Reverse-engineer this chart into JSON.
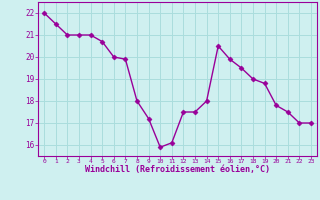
{
  "x": [
    0,
    1,
    2,
    3,
    4,
    5,
    6,
    7,
    8,
    9,
    10,
    11,
    12,
    13,
    14,
    15,
    16,
    17,
    18,
    19,
    20,
    21,
    22,
    23
  ],
  "y": [
    22.0,
    21.5,
    21.0,
    21.0,
    21.0,
    20.7,
    20.0,
    19.9,
    18.0,
    17.2,
    15.9,
    16.1,
    17.5,
    17.5,
    18.0,
    20.5,
    19.9,
    19.5,
    19.0,
    18.8,
    17.8,
    17.5,
    17.0,
    17.0
  ],
  "line_color": "#990099",
  "marker": "D",
  "marker_size": 2.5,
  "bg_color": "#cff0f0",
  "grid_color": "#aadddd",
  "xlabel": "Windchill (Refroidissement éolien,°C)",
  "xlabel_color": "#990099",
  "tick_color": "#990099",
  "ylim": [
    15.5,
    22.5
  ],
  "xlim": [
    -0.5,
    23.5
  ],
  "yticks": [
    16,
    17,
    18,
    19,
    20,
    21,
    22
  ],
  "xticks": [
    0,
    1,
    2,
    3,
    4,
    5,
    6,
    7,
    8,
    9,
    10,
    11,
    12,
    13,
    14,
    15,
    16,
    17,
    18,
    19,
    20,
    21,
    22,
    23
  ],
  "spine_color": "#990099",
  "line_width": 1.0
}
